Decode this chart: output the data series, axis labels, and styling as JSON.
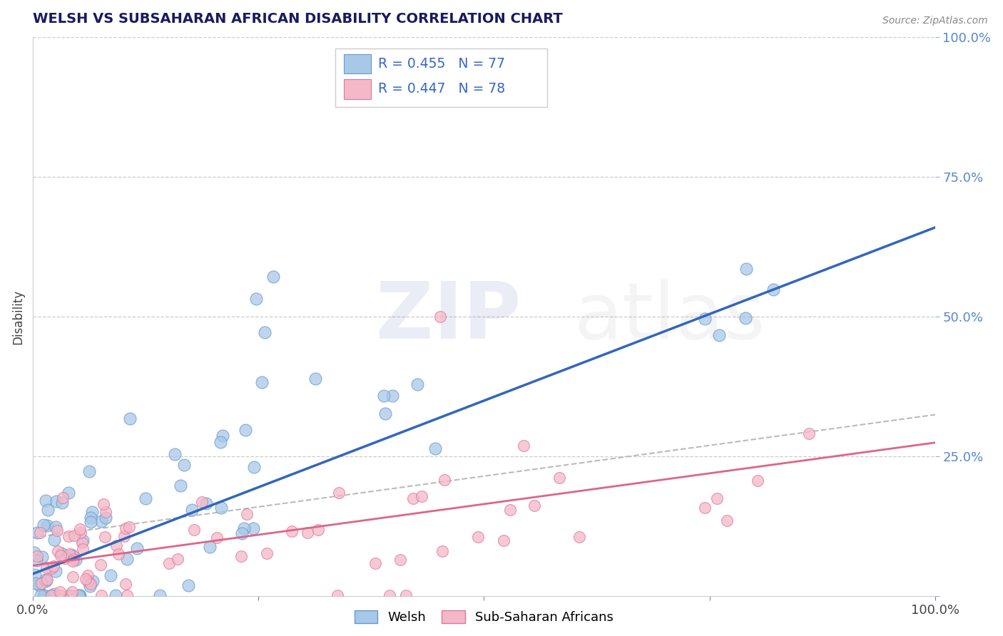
{
  "title": "WELSH VS SUBSAHARAN AFRICAN DISABILITY CORRELATION CHART",
  "source": "Source: ZipAtlas.com",
  "ylabel": "Disability",
  "xlim": [
    0,
    1
  ],
  "ylim": [
    0,
    1
  ],
  "welsh_color": "#a8c8e8",
  "welsh_edge": "#6699cc",
  "subsaharan_color": "#f5b8c8",
  "subsaharan_edge": "#dd7799",
  "regression_welsh_color": "#3366bb",
  "regression_sub_color": "#dd6688",
  "regression_dashed_color": "#bbbbbb",
  "grid_color": "#cccccc",
  "background_color": "#ffffff",
  "legend_welsh_R": "R = 0.455",
  "legend_welsh_N": "N = 77",
  "legend_sub_R": "R = 0.447",
  "legend_sub_N": "N = 78",
  "welsh_n": 77,
  "sub_n": 78
}
